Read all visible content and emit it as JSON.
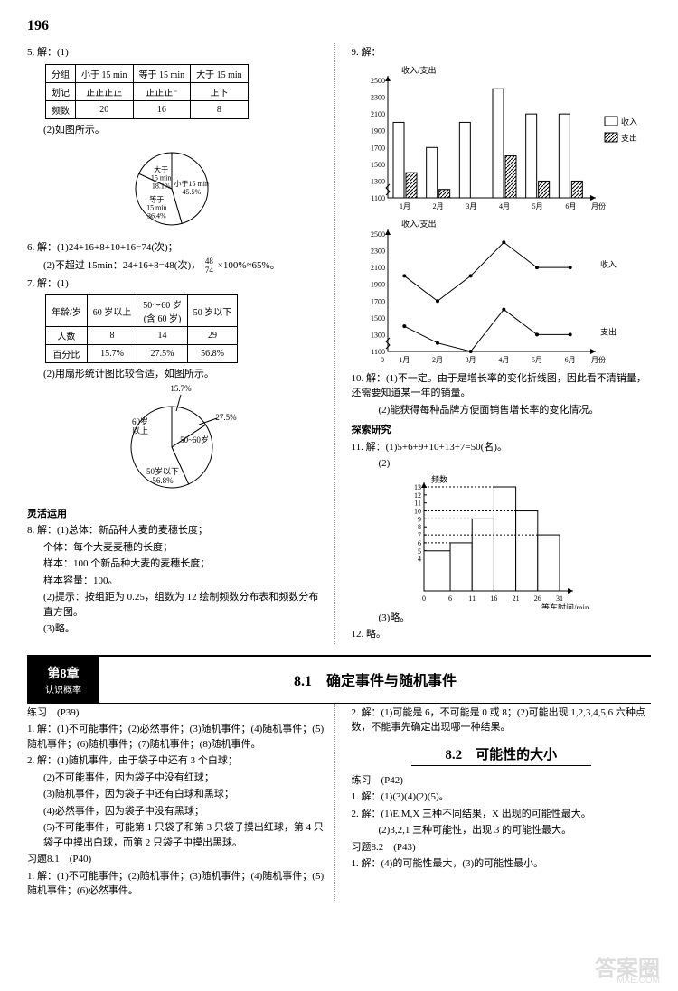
{
  "page_number": "196",
  "q5": {
    "prefix": "5. 解：(1)",
    "table": {
      "headers": [
        "分组",
        "小于 15 min",
        "等于 15 min",
        "大于 15 min"
      ],
      "rows": [
        [
          "划记",
          "正正正正",
          "正正正⁻",
          "正下"
        ],
        [
          "频数",
          "20",
          "16",
          "8"
        ]
      ]
    },
    "part2_label": "(2)如图所示。",
    "pie": {
      "slices": [
        {
          "label": "小于15 min",
          "pct": "45.5%",
          "value": 45.5,
          "color": "#ffffff"
        },
        {
          "label": "等于\n15 min",
          "pct": "36.4%",
          "value": 36.4,
          "color": "#ffffff"
        },
        {
          "label": "大于\n15 min",
          "pct": "18.1%",
          "value": 18.1,
          "color": "#ffffff"
        }
      ],
      "stroke": "#000000"
    }
  },
  "q6": {
    "line1": "6. 解：(1)24+16+8+10+16=74(次)；",
    "line2_a": "(2)不超过 15min：24+16+8=48(次)，",
    "line2_frac_n": "48",
    "line2_frac_d": "74",
    "line2_b": "×100%≈65%。"
  },
  "q7": {
    "prefix": "7. 解：(1)",
    "table": {
      "headers": [
        "年龄/岁",
        "60 岁以上",
        "50～60 岁\n(含 60 岁)",
        "50 岁以下"
      ],
      "rows": [
        [
          "人数",
          "8",
          "14",
          "29"
        ],
        [
          "百分比",
          "15.7%",
          "27.5%",
          "56.8%"
        ]
      ]
    },
    "part2_label": "(2)用扇形统计图比较合适，如图所示。",
    "pie": {
      "slices": [
        {
          "label": "60岁\n以上",
          "pct": "15.7%",
          "value": 15.7
        },
        {
          "label": "50~60岁",
          "pct": "27.5%",
          "value": 27.5
        },
        {
          "label": "50岁以下",
          "pct": "56.8%",
          "value": 56.8
        }
      ],
      "stroke": "#000000"
    }
  },
  "flex_heading": "灵活运用",
  "q8": {
    "l1": "8. 解：(1)总体：新品种大麦的麦穗长度；",
    "l2": "个体：每个大麦麦穗的长度；",
    "l3": "样本：100 个新品种大麦的麦穗长度；",
    "l4": "样本容量：100。",
    "l5": "(2)提示：按组距为 0.25，组数为 12 绘制频数分布表和频数分布直方图。",
    "l6": "(3)略。"
  },
  "q9": {
    "prefix": "9. 解：",
    "bar": {
      "y_label_top": "收入/支出",
      "x_label": "月份",
      "y_ticks": [
        1100,
        1300,
        1500,
        1700,
        1900,
        2100,
        2300,
        2500
      ],
      "x_cats": [
        "1月",
        "2月",
        "3月",
        "4月",
        "5月",
        "6月"
      ],
      "income": [
        2000,
        1700,
        2000,
        2400,
        2100,
        2100
      ],
      "expense": [
        1400,
        1200,
        1100,
        1600,
        1300,
        1300
      ],
      "income_color": "#ffffff",
      "expense_pattern": "hatch",
      "legend": [
        "收入",
        "支出"
      ],
      "stroke": "#000000"
    },
    "line": {
      "y_label_top": "收入/支出",
      "x_label": "月份",
      "y_ticks": [
        1100,
        1300,
        1500,
        1700,
        1900,
        2100,
        2300,
        2500
      ],
      "x_cats": [
        "1月",
        "2月",
        "3月",
        "4月",
        "5月",
        "6月"
      ],
      "income": [
        2000,
        1700,
        2000,
        2400,
        2100,
        2100
      ],
      "expense": [
        1400,
        1200,
        1100,
        1600,
        1300,
        1300
      ],
      "labels": [
        "收入",
        "支出"
      ],
      "stroke": "#000000"
    }
  },
  "q10": {
    "l1": "10. 解：(1)不一定。由于是增长率的变化折线图，因此看不清销量，还需要知道某一年的销量。",
    "l2": "(2)能获得每种品牌方便面销售增长率的变化情况。"
  },
  "explore_heading": "探索研究",
  "q11": {
    "l1": "11. 解：(1)5+6+9+10+13+7=50(名)。",
    "l2": "(2)",
    "hist": {
      "y_label": "频数",
      "x_label": "等车时间/min",
      "y_ticks": [
        4,
        5,
        6,
        7,
        8,
        9,
        10,
        11,
        12,
        13
      ],
      "x_ticks": [
        0,
        6,
        11,
        16,
        21,
        26,
        31
      ],
      "bars": [
        {
          "x0": 0,
          "x1": 6,
          "h": 5
        },
        {
          "x0": 6,
          "x1": 11,
          "h": 6
        },
        {
          "x0": 11,
          "x1": 16,
          "h": 9
        },
        {
          "x0": 16,
          "x1": 21,
          "h": 13
        },
        {
          "x0": 21,
          "x1": 26,
          "h": 10
        },
        {
          "x0": 26,
          "x1": 31,
          "h": 7
        }
      ],
      "stroke": "#000000",
      "fill": "#ffffff"
    },
    "l3": "(3)略。"
  },
  "q12": "12. 略。",
  "chapter": {
    "tab_main": "第8章",
    "tab_sub": "认识概率",
    "title": "8.1　确定事件与随机事件"
  },
  "practice_p39": "练习　(P39)",
  "p1": "1. 解：(1)不可能事件；(2)必然事件；(3)随机事件；(4)随机事件；(5)随机事件；(6)随机事件；(7)随机事件；(8)随机事件。",
  "p2": {
    "l1": "2. 解：(1)随机事件，由于袋子中还有 3 个白球；",
    "l2": "(2)不可能事件，因为袋子中没有红球；",
    "l3": "(3)随机事件，因为袋子中还有白球和黑球；",
    "l4": "(4)必然事件，因为袋子中没有黑球；",
    "l5": "(5)不可能事件，可能第 1 只袋子和第 3 只袋子摸出红球，第 4 只袋子中摸出白球，而第 2 只袋子中摸出黑球。"
  },
  "ex81": "习题8.1　(P40)",
  "e1": "1. 解：(1)不可能事件；(2)随机事件；(3)随机事件；(4)随机事件；(5)随机事件；(6)必然事件。",
  "right_p2": "2. 解：(1)可能是 6，不可能是 0 或 8；(2)可能出现 1,2,3,4,5,6 六种点数，不能事先确定出现哪一种结果。",
  "sec82": "8.2　可能性的大小",
  "practice_p42": "练习　(P42)",
  "r1": "1. 解：(1)(3)(4)(2)(5)。",
  "r2": {
    "l1": "2. 解：(1)E,M,X 三种不同结果，X 出现的可能性最大。",
    "l2": "(2)3,2,1 三种可能性，出现 3 的可能性最大。"
  },
  "ex82": "习题8.2　(P43)",
  "r3": "1. 解：(4)的可能性最大，(3)的可能性最小。",
  "watermark": "答案圈",
  "watermark_sub": "MXE.COM"
}
